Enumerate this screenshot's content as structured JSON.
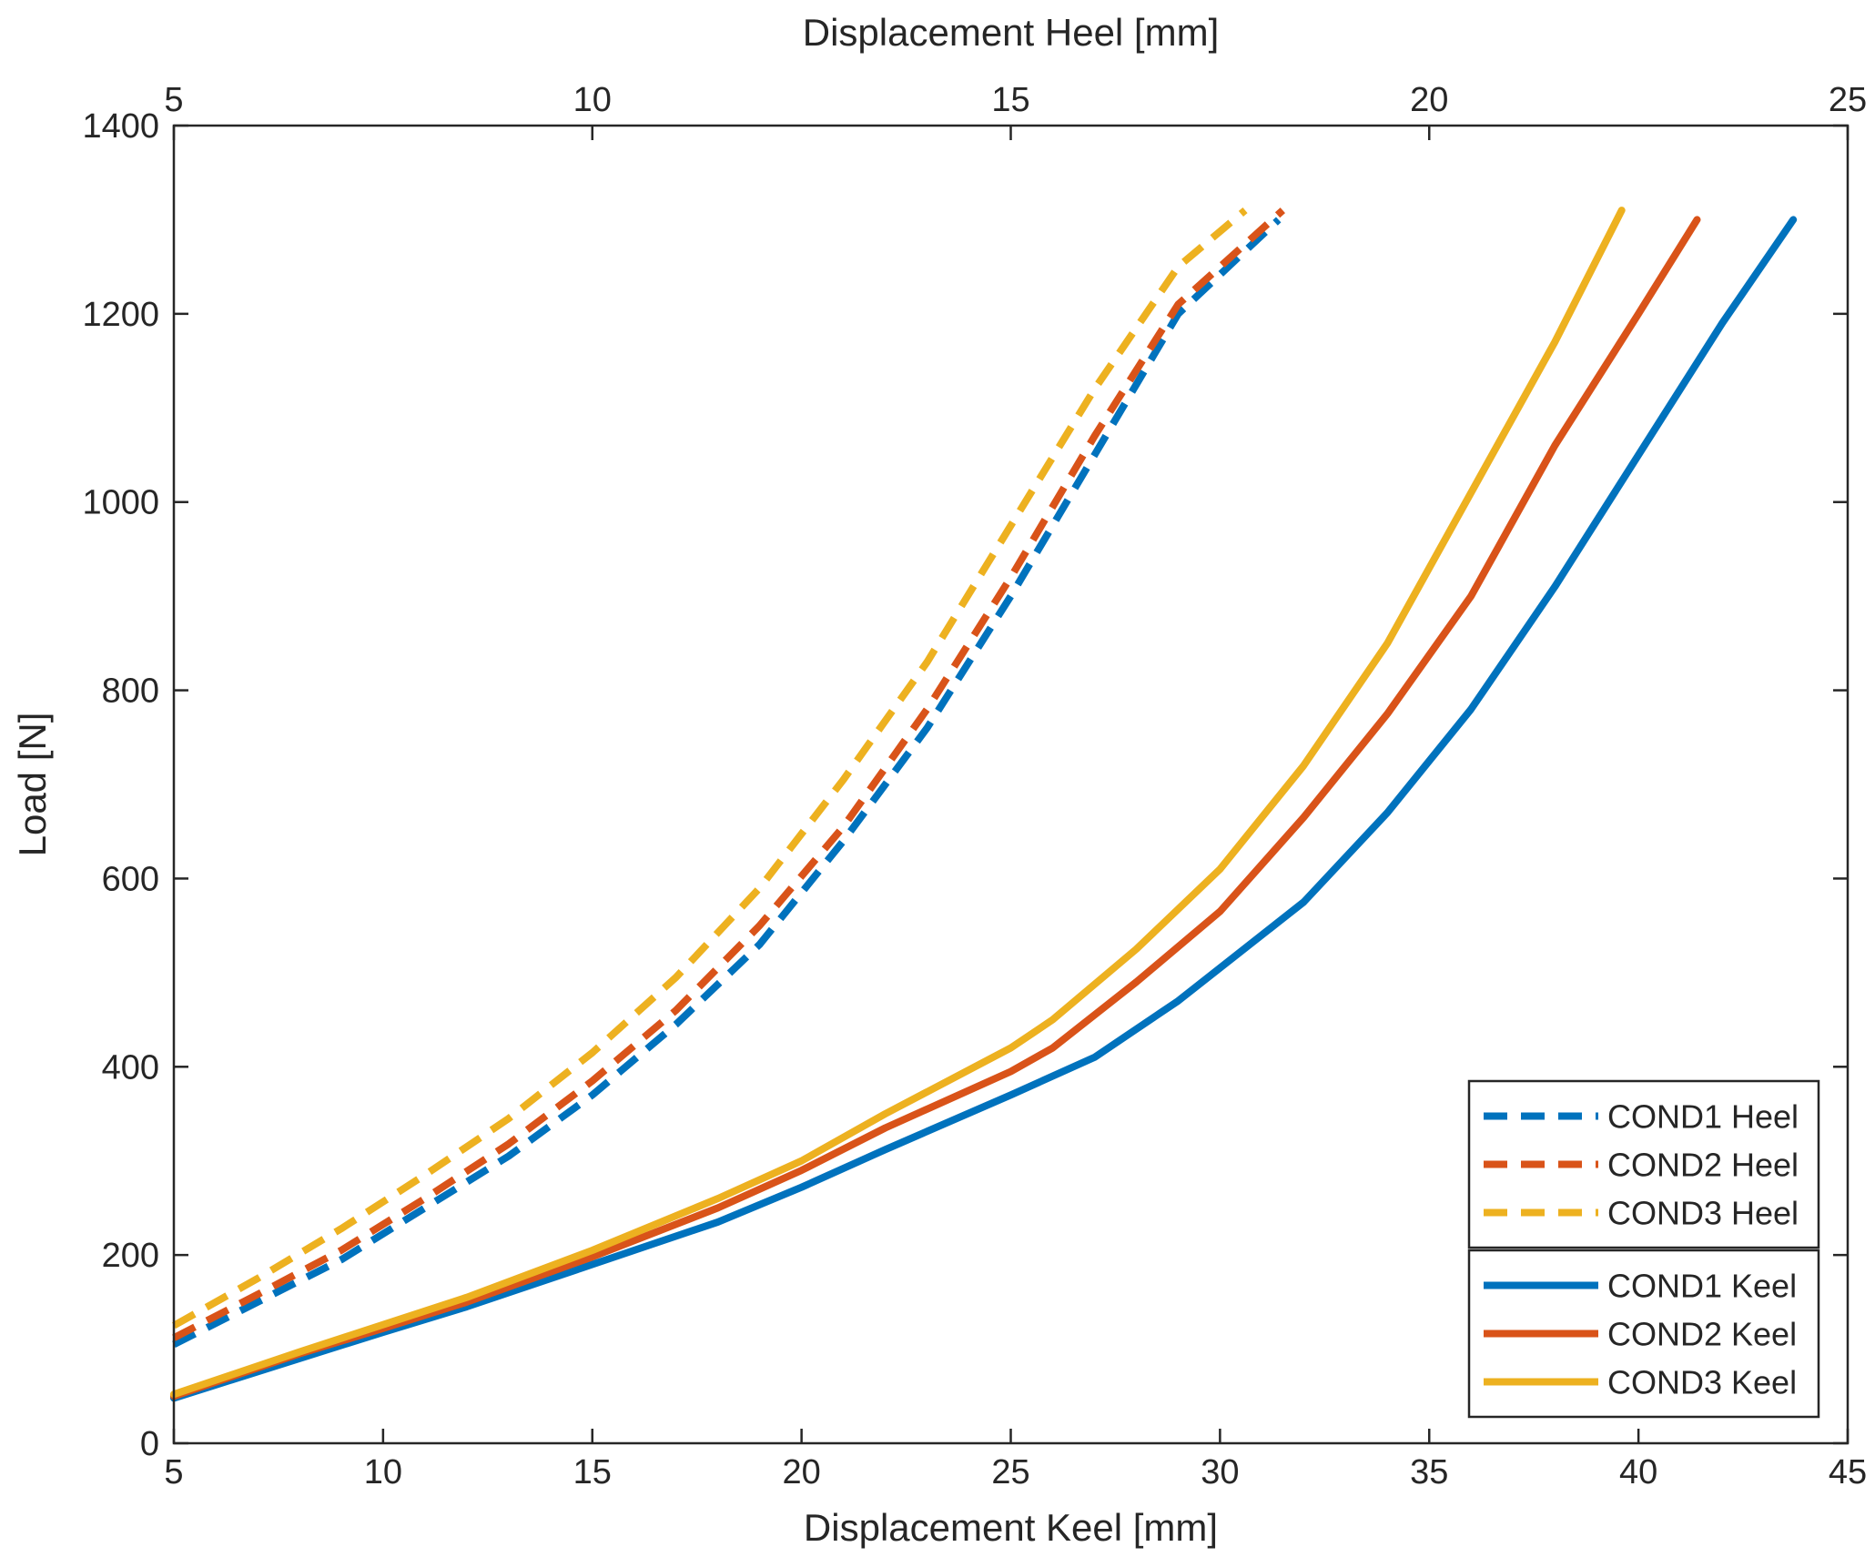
{
  "chart_data": {
    "type": "line",
    "title": "",
    "xlabel": "Displacement Keel [mm]",
    "x2label": "Displacement Heel [mm]",
    "ylabel": "Load [N]",
    "xlim": [
      5,
      45
    ],
    "x2lim": [
      5,
      25
    ],
    "ylim": [
      0,
      1400
    ],
    "xticks": [
      "5",
      "10",
      "15",
      "20",
      "25",
      "30",
      "35",
      "40",
      "45"
    ],
    "x2ticks": [
      "5",
      "10",
      "15",
      "20",
      "25"
    ],
    "yticks": [
      "0",
      "200",
      "400",
      "600",
      "800",
      "1000",
      "1200",
      "1400"
    ],
    "grid": false,
    "legend_position": "bottom-right",
    "series": [
      {
        "name": "COND1 Heel",
        "axis": "top",
        "style": "dashed",
        "color": "#0072BD",
        "x": [
          5.0,
          6.0,
          7.0,
          8.0,
          9.0,
          10.0,
          11.0,
          12.0,
          13.0,
          14.0,
          15.0,
          16.0,
          17.0,
          18.2
        ],
        "y": [
          105,
          150,
          195,
          250,
          305,
          370,
          445,
          530,
          640,
          760,
          900,
          1050,
          1200,
          1300
        ]
      },
      {
        "name": "COND2 Heel",
        "axis": "top",
        "style": "dashed",
        "color": "#D95319",
        "x": [
          5.0,
          6.0,
          7.0,
          8.0,
          9.0,
          10.0,
          11.0,
          12.0,
          13.0,
          14.0,
          15.0,
          16.0,
          17.0,
          18.25
        ],
        "y": [
          112,
          158,
          205,
          260,
          318,
          385,
          460,
          550,
          655,
          780,
          920,
          1070,
          1210,
          1310
        ]
      },
      {
        "name": "COND3 Heel",
        "axis": "top",
        "style": "dashed",
        "color": "#EDB120",
        "x": [
          5.0,
          6.0,
          7.0,
          8.0,
          9.0,
          10.0,
          11.0,
          12.0,
          13.0,
          14.0,
          15.0,
          16.0,
          17.0,
          17.8
        ],
        "y": [
          125,
          175,
          228,
          285,
          345,
          415,
          495,
          590,
          705,
          830,
          975,
          1120,
          1250,
          1310
        ]
      },
      {
        "name": "COND1 Keel",
        "axis": "bottom",
        "style": "solid",
        "color": "#0072BD",
        "x": [
          5,
          8,
          10,
          12,
          15,
          18,
          20,
          22,
          25,
          27,
          29,
          32,
          34,
          36,
          38,
          40,
          42,
          43.7
        ],
        "y": [
          48,
          90,
          118,
          145,
          190,
          235,
          272,
          312,
          370,
          410,
          470,
          575,
          670,
          780,
          910,
          1050,
          1190,
          1300
        ]
      },
      {
        "name": "COND2 Keel",
        "axis": "bottom",
        "style": "solid",
        "color": "#D95319",
        "x": [
          5,
          8,
          10,
          12,
          15,
          18,
          20,
          22,
          25,
          26,
          28,
          30,
          32,
          34,
          36,
          38,
          40,
          41.4
        ],
        "y": [
          50,
          95,
          122,
          150,
          198,
          250,
          290,
          335,
          395,
          420,
          490,
          565,
          665,
          775,
          900,
          1060,
          1200,
          1300
        ]
      },
      {
        "name": "COND3 Keel",
        "axis": "bottom",
        "style": "solid",
        "color": "#EDB120",
        "x": [
          5,
          8,
          10,
          12,
          15,
          18,
          20,
          22,
          25,
          26,
          28,
          30,
          32,
          34,
          35,
          36,
          38,
          39.6
        ],
        "y": [
          52,
          97,
          126,
          155,
          205,
          260,
          300,
          350,
          420,
          450,
          525,
          610,
          720,
          850,
          930,
          1010,
          1170,
          1310
        ]
      }
    ]
  }
}
